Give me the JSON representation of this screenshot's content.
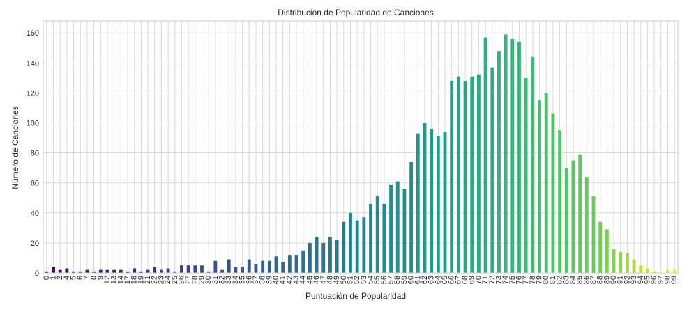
{
  "chart_data": {
    "type": "bar",
    "title": "Distribución de Popularidad de Canciones",
    "xlabel": "Puntuación de Popularidad",
    "ylabel": "Número de Canciones",
    "ylim": [
      0,
      168
    ],
    "yticks": [
      0,
      20,
      40,
      60,
      80,
      100,
      120,
      140,
      160
    ],
    "grid": true,
    "colormap": "viridis",
    "categories": [
      "0",
      "1",
      "2",
      "4",
      "5",
      "6",
      "7",
      "8",
      "9",
      "12",
      "13",
      "14",
      "17",
      "18",
      "19",
      "21",
      "22",
      "23",
      "24",
      "25",
      "26",
      "27",
      "28",
      "29",
      "30",
      "31",
      "32",
      "33",
      "34",
      "35",
      "36",
      "37",
      "38",
      "39",
      "40",
      "41",
      "42",
      "43",
      "44",
      "45",
      "46",
      "47",
      "48",
      "49",
      "50",
      "51",
      "52",
      "53",
      "54",
      "55",
      "56",
      "57",
      "58",
      "59",
      "60",
      "61",
      "62",
      "63",
      "64",
      "65",
      "66",
      "67",
      "68",
      "69",
      "70",
      "71",
      "72",
      "73",
      "74",
      "75",
      "76",
      "77",
      "78",
      "79",
      "80",
      "81",
      "82",
      "83",
      "84",
      "85",
      "86",
      "87",
      "88",
      "89",
      "90",
      "91",
      "92",
      "93",
      "94",
      "95",
      "96",
      "97",
      "98",
      "99"
    ],
    "values": [
      1,
      4,
      2,
      3,
      1,
      1,
      2,
      1,
      2,
      2,
      2,
      2,
      1,
      3,
      1,
      2,
      4,
      2,
      3,
      1,
      5,
      5,
      5,
      5,
      1,
      8,
      2,
      9,
      4,
      4,
      9,
      6,
      8,
      8,
      11,
      7,
      12,
      12,
      15,
      20,
      24,
      20,
      24,
      22,
      34,
      40,
      35,
      37,
      46,
      51,
      46,
      59,
      61,
      56,
      74,
      93,
      100,
      96,
      91,
      94,
      128,
      131,
      128,
      131,
      132,
      157,
      137,
      148,
      159,
      156,
      154,
      130,
      144,
      115,
      120,
      106,
      95,
      70,
      75,
      79,
      64,
      51,
      34,
      29,
      16,
      14,
      13,
      9,
      5,
      3,
      1,
      0,
      2,
      2
    ]
  }
}
